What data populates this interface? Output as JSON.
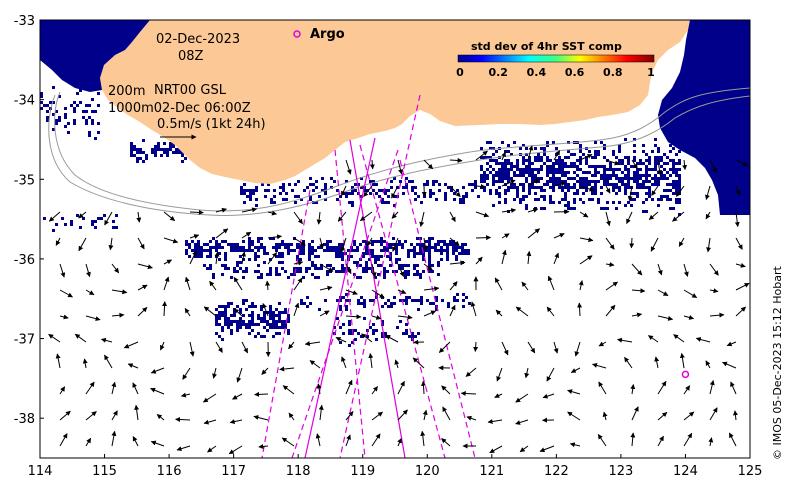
{
  "map": {
    "lon_range": [
      114,
      125
    ],
    "lat_range": [
      -38.5,
      -33
    ],
    "x_ticks": [
      114,
      115,
      116,
      117,
      118,
      119,
      120,
      121,
      122,
      123,
      124,
      125
    ],
    "y_ticks": [
      -33,
      -34,
      -35,
      -36,
      -37,
      -38
    ],
    "land_color": "#fcc895",
    "sst_color": "#00008b",
    "float_color": "#e000e0"
  },
  "annotations": {
    "date": "02-Dec-2023",
    "time": "08Z",
    "contour_200": "200m",
    "product": "NRT00 GSL",
    "contour_1000": "1000m02-Dec 06:00Z",
    "velocity_scale": "0.5m/s (1kt 24h)"
  },
  "argo": {
    "label": "Argo",
    "lon": 124.0,
    "lat": -37.45
  },
  "legend": {
    "title": "std dev of 4hr SST comp",
    "ticks": [
      "0",
      "0.2",
      "0.4",
      "0.6",
      "0.8",
      "1"
    ]
  },
  "credit": "© IMOS 05-Dec-2023 15:12 Hobart"
}
